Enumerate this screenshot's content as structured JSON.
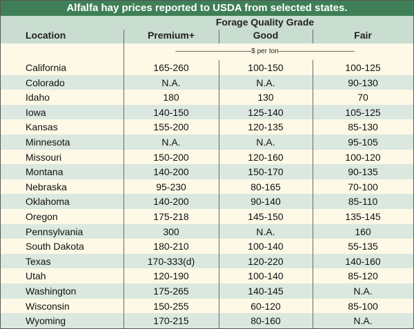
{
  "title": "Alfalfa hay prices reported to USDA from selected states.",
  "group_header": "Forage Quality Grade",
  "col_headers": [
    "Location",
    "Premium+",
    "Good",
    "Fair"
  ],
  "unit_label": "———————————$ per ton———————————",
  "colors": {
    "title_bg": "#3f7f57",
    "header_bg": "#c9ddd1",
    "row_light": "#fdf9e6",
    "row_dark": "#dbe8df"
  },
  "chart_data": {
    "type": "table",
    "title": "Alfalfa hay prices reported to USDA from selected states.",
    "columns": [
      "Location",
      "Premium+",
      "Good",
      "Fair"
    ],
    "rows": [
      [
        "California",
        "165-260",
        "100-150",
        "100-125"
      ],
      [
        "Colorado",
        "N.A.",
        "N.A.",
        "90-130"
      ],
      [
        "Idaho",
        "180",
        "130",
        "70"
      ],
      [
        "Iowa",
        "140-150",
        "125-140",
        "105-125"
      ],
      [
        "Kansas",
        "155-200",
        "120-135",
        "85-130"
      ],
      [
        "Minnesota",
        "N.A.",
        "N.A.",
        "95-105"
      ],
      [
        "Missouri",
        "150-200",
        "120-160",
        "100-120"
      ],
      [
        "Montana",
        "140-200",
        "150-170",
        "90-135"
      ],
      [
        "Nebraska",
        "95-230",
        "80-165",
        "70-100"
      ],
      [
        "Oklahoma",
        "140-200",
        "90-140",
        "85-110"
      ],
      [
        "Oregon",
        "175-218",
        "145-150",
        "135-145"
      ],
      [
        "Pennsylvania",
        "300",
        "N.A.",
        "160"
      ],
      [
        "South Dakota",
        "180-210",
        "100-140",
        "55-135"
      ],
      [
        "Texas",
        "170-333(d)",
        "120-220",
        "140-160"
      ],
      [
        "Utah",
        "120-190",
        "100-140",
        "85-120"
      ],
      [
        "Washington",
        "175-265",
        "140-145",
        "N.A."
      ],
      [
        "Wisconsin",
        "150-255",
        "60-120",
        "85-100"
      ],
      [
        "Wyoming",
        "170-215",
        "80-160",
        "N.A."
      ]
    ]
  }
}
